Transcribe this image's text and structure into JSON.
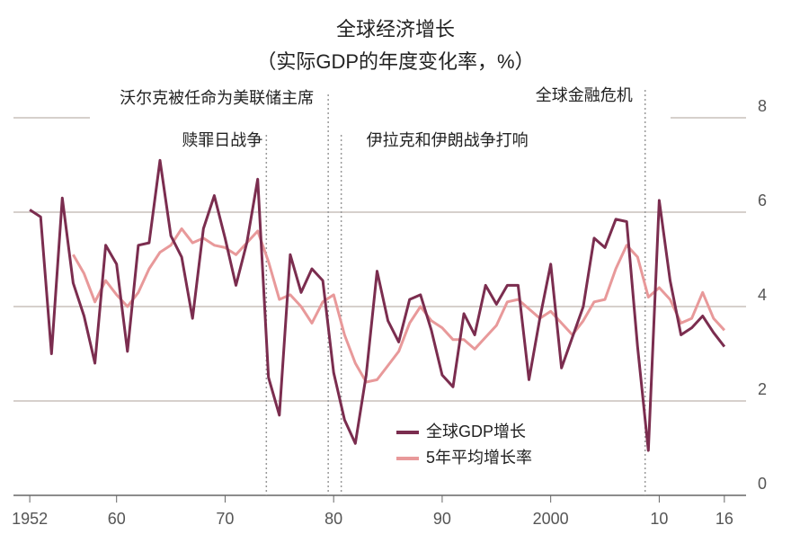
{
  "chart_data": {
    "type": "line",
    "title": "全球经济增长",
    "subtitle": "（实际GDP的年度变化率，%）",
    "x": [
      1952,
      1953,
      1954,
      1955,
      1956,
      1957,
      1958,
      1959,
      1960,
      1961,
      1962,
      1963,
      1964,
      1965,
      1966,
      1967,
      1968,
      1969,
      1970,
      1971,
      1972,
      1973,
      1974,
      1975,
      1976,
      1977,
      1978,
      1979,
      1980,
      1981,
      1982,
      1983,
      1984,
      1985,
      1986,
      1987,
      1988,
      1989,
      1990,
      1991,
      1992,
      1993,
      1994,
      1995,
      1996,
      1997,
      1998,
      1999,
      2000,
      2001,
      2002,
      2003,
      2004,
      2005,
      2006,
      2007,
      2008,
      2009,
      2010,
      2011,
      2012,
      2013,
      2014,
      2015,
      2016
    ],
    "series": [
      {
        "name": "全球GDP增长",
        "color": "#7b2d4f",
        "values": [
          6.05,
          5.9,
          3.0,
          6.3,
          4.5,
          3.8,
          2.8,
          5.3,
          4.9,
          3.05,
          5.3,
          5.35,
          7.1,
          5.5,
          5.05,
          3.75,
          5.65,
          6.35,
          5.45,
          4.45,
          5.35,
          6.7,
          2.5,
          1.7,
          5.1,
          4.3,
          4.8,
          4.55,
          2.6,
          1.6,
          1.1,
          2.55,
          4.75,
          3.7,
          3.25,
          4.15,
          4.25,
          3.5,
          2.55,
          2.3,
          3.85,
          3.4,
          4.45,
          4.05,
          4.45,
          4.45,
          2.45,
          3.75,
          4.9,
          2.7,
          3.35,
          4.0,
          5.45,
          5.25,
          5.85,
          5.8,
          3.15,
          0.95,
          6.25,
          4.55,
          3.4,
          3.55,
          3.8,
          3.45,
          3.15
        ]
      },
      {
        "name": "5年平均增长率",
        "color": "#e8999a",
        "values": [
          null,
          null,
          null,
          null,
          5.1,
          4.7,
          4.1,
          4.55,
          4.25,
          4.0,
          4.3,
          4.8,
          5.15,
          5.3,
          5.65,
          5.35,
          5.45,
          5.3,
          5.25,
          5.1,
          5.35,
          5.6,
          4.95,
          4.15,
          4.25,
          4.0,
          3.65,
          4.1,
          4.25,
          3.4,
          2.8,
          2.4,
          2.45,
          2.75,
          3.05,
          3.65,
          4.0,
          3.7,
          3.55,
          3.3,
          3.3,
          3.1,
          3.35,
          3.6,
          4.1,
          4.15,
          3.95,
          3.75,
          3.9,
          3.65,
          3.4,
          3.7,
          4.1,
          4.15,
          4.8,
          5.3,
          5.05,
          4.2,
          4.4,
          4.15,
          3.65,
          3.75,
          4.3,
          3.75,
          3.5
        ]
      }
    ],
    "xlim": [
      1950.5,
      2018
    ],
    "xticks": [
      1952,
      {
        "value": 1960,
        "label": "60"
      },
      {
        "value": 1970,
        "label": "70"
      },
      {
        "value": 1980,
        "label": "80"
      },
      {
        "value": 1990,
        "label": "90"
      },
      2000,
      {
        "value": 2010,
        "label": "10"
      },
      {
        "value": 2016,
        "label": "16"
      }
    ],
    "ylim": [
      0,
      8
    ],
    "yticks": [
      0,
      2,
      4,
      6,
      8
    ],
    "grid": true,
    "annotations": [
      {
        "text": "沃尔克被任命为美联储主席",
        "x": 1979.5
      },
      {
        "text": "赎罪日战争",
        "x": 1973.8
      },
      {
        "text": "伊拉克和伊朗战争打响",
        "x": 1980.7
      },
      {
        "text": "全球金融危机",
        "x": 2008.7
      }
    ]
  }
}
